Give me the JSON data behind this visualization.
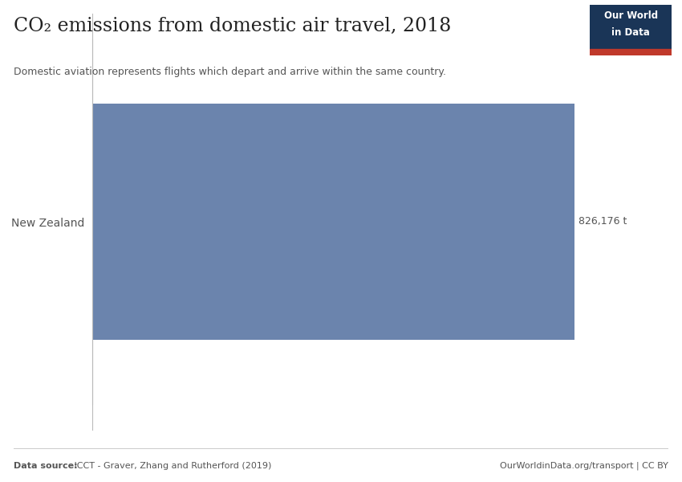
{
  "title": "CO₂ emissions from domestic air travel, 2018",
  "subtitle": "Domestic aviation represents flights which depart and arrive within the same country.",
  "category": "New Zealand",
  "value": 826176,
  "value_label": "826,176 t",
  "bar_color": "#6b84ad",
  "background_color": "#ffffff",
  "text_color": "#555555",
  "title_color": "#222222",
  "footer_left": "Data source: ICCT - Graver, Zhang and Rutherford (2019)",
  "footer_right": "OurWorldinData.org/transport | CC BY",
  "logo_bg": "#1a3557",
  "logo_text_line1": "Our World",
  "logo_text_line2": "in Data",
  "logo_accent": "#c0392b",
  "xlim": [
    0,
    900000
  ],
  "bar_height": 0.65,
  "footer_bold": "Data source:",
  "footer_rest": " ICCT - Graver, Zhang and Rutherford (2019)"
}
